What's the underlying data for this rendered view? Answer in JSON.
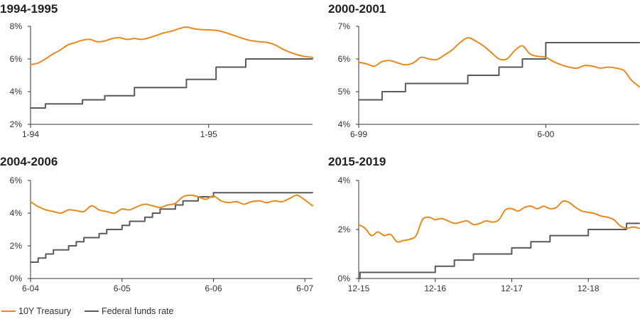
{
  "legend": [
    {
      "label": "10Y Treasury",
      "color": "#e8891e"
    },
    {
      "label": "Federal funds rate",
      "color": "#5a5a5a"
    }
  ],
  "chart_data": [
    {
      "type": "line",
      "title": "1994-1995",
      "ylim": [
        2,
        8
      ],
      "yticks": [
        2,
        4,
        6,
        8
      ],
      "ytick_labels": [
        "2%",
        "4%",
        "6%",
        "8%"
      ],
      "xlim": [
        0,
        19
      ],
      "xticks": [
        0,
        12
      ],
      "xtick_labels": [
        "1-94",
        "1-95"
      ],
      "grid": false,
      "series": [
        {
          "name": "10Y Treasury",
          "color": "#e8891e",
          "x": [
            0,
            0.5,
            1,
            1.5,
            2,
            2.5,
            3,
            3.5,
            4,
            4.5,
            5,
            5.5,
            6,
            6.5,
            7,
            7.5,
            8,
            8.5,
            9,
            9.5,
            10,
            10.5,
            11,
            11.5,
            12,
            12.5,
            13,
            13.5,
            14,
            14.5,
            15,
            15.5,
            16,
            16.5,
            17,
            17.5,
            18,
            18.5,
            19
          ],
          "y": [
            5.65,
            5.75,
            6.0,
            6.3,
            6.55,
            6.85,
            7.0,
            7.15,
            7.2,
            7.05,
            7.1,
            7.25,
            7.3,
            7.2,
            7.25,
            7.2,
            7.3,
            7.45,
            7.6,
            7.7,
            7.85,
            7.95,
            7.85,
            7.8,
            7.78,
            7.75,
            7.65,
            7.5,
            7.35,
            7.2,
            7.1,
            7.05,
            7.0,
            6.85,
            6.6,
            6.4,
            6.25,
            6.15,
            6.1
          ]
        },
        {
          "name": "Federal funds rate",
          "color": "#5a5a5a",
          "step": true,
          "x": [
            0,
            1,
            2,
            3.5,
            5,
            7,
            8.5,
            10.5,
            12.5,
            14.5,
            19
          ],
          "y": [
            3.0,
            3.25,
            3.25,
            3.5,
            3.75,
            4.25,
            4.25,
            4.75,
            5.5,
            6.0,
            6.0
          ]
        }
      ]
    },
    {
      "type": "line",
      "title": "2000-2001",
      "ylim": [
        4,
        7
      ],
      "yticks": [
        4,
        5,
        6,
        7
      ],
      "ytick_labels": [
        "4%",
        "5%",
        "6%",
        "7%"
      ],
      "xlim": [
        0,
        18
      ],
      "xticks": [
        0,
        12
      ],
      "xtick_labels": [
        "6-99",
        "6-00"
      ],
      "grid": false,
      "series": [
        {
          "name": "10Y Treasury",
          "color": "#e8891e",
          "x": [
            0,
            0.5,
            1,
            1.5,
            2,
            2.5,
            3,
            3.5,
            4,
            4.5,
            5,
            5.5,
            6,
            6.5,
            7,
            7.5,
            8,
            8.5,
            9,
            9.5,
            10,
            10.5,
            11,
            11.5,
            12,
            12.5,
            13,
            13.5,
            14,
            14.5,
            15,
            15.5,
            16,
            16.5,
            17,
            17.5,
            18
          ],
          "y": [
            5.9,
            5.85,
            5.78,
            5.92,
            5.95,
            5.88,
            5.82,
            5.88,
            6.05,
            6.0,
            5.98,
            6.12,
            6.28,
            6.5,
            6.65,
            6.55,
            6.4,
            6.2,
            6.0,
            6.0,
            6.25,
            6.4,
            6.15,
            6.08,
            6.05,
            5.92,
            5.82,
            5.75,
            5.72,
            5.8,
            5.78,
            5.72,
            5.75,
            5.72,
            5.65,
            5.35,
            5.15
          ]
        },
        {
          "name": "Federal funds rate",
          "color": "#5a5a5a",
          "step": true,
          "x": [
            0,
            1.5,
            3,
            5,
            7,
            9,
            10.5,
            12,
            18
          ],
          "y": [
            4.75,
            5.0,
            5.25,
            5.25,
            5.5,
            5.75,
            6.0,
            6.5,
            6.5
          ]
        }
      ]
    },
    {
      "type": "line",
      "title": "2004-2006",
      "ylim": [
        0,
        6
      ],
      "yticks": [
        0,
        2,
        4,
        6
      ],
      "ytick_labels": [
        "0%",
        "2%",
        "4%",
        "6%"
      ],
      "xlim": [
        0,
        37
      ],
      "xticks": [
        0,
        12,
        24,
        36
      ],
      "xtick_labels": [
        "6-04",
        "6-05",
        "6-06",
        "6-07"
      ],
      "grid": false,
      "series": [
        {
          "name": "10Y Treasury",
          "color": "#e8891e",
          "x": [
            0,
            1,
            2,
            3,
            4,
            5,
            6,
            7,
            8,
            9,
            10,
            11,
            12,
            13,
            14,
            15,
            16,
            17,
            18,
            19,
            20,
            21,
            22,
            23,
            24,
            25,
            26,
            27,
            28,
            29,
            30,
            31,
            32,
            33,
            34,
            35,
            36,
            37
          ],
          "y": [
            4.7,
            4.4,
            4.2,
            4.1,
            4.0,
            4.2,
            4.15,
            4.1,
            4.45,
            4.2,
            4.1,
            4.0,
            4.25,
            4.2,
            4.4,
            4.55,
            4.45,
            4.35,
            4.5,
            4.6,
            5.0,
            5.1,
            5.0,
            4.85,
            5.05,
            4.75,
            4.65,
            4.7,
            4.55,
            4.7,
            4.75,
            4.65,
            4.75,
            4.7,
            4.9,
            5.1,
            4.8,
            4.45
          ]
        },
        {
          "name": "Federal funds rate",
          "color": "#5a5a5a",
          "step": true,
          "x": [
            0,
            1,
            2,
            3,
            4,
            5,
            6,
            7,
            8,
            9,
            10,
            11,
            12,
            13,
            14,
            15,
            16,
            17,
            18,
            19,
            20,
            21,
            22,
            23,
            24,
            37
          ],
          "y": [
            1.0,
            1.25,
            1.5,
            1.75,
            1.75,
            2.0,
            2.25,
            2.5,
            2.5,
            2.75,
            3.0,
            3.0,
            3.25,
            3.5,
            3.5,
            3.75,
            4.0,
            4.25,
            4.25,
            4.5,
            4.75,
            4.75,
            5.0,
            5.0,
            5.25,
            5.25
          ]
        }
      ]
    },
    {
      "type": "line",
      "title": "2015-2019",
      "ylim": [
        0,
        4
      ],
      "yticks": [
        0,
        2,
        4
      ],
      "ytick_labels": [
        "0%",
        "2%",
        "4%"
      ],
      "xlim": [
        0,
        44
      ],
      "xticks": [
        0,
        12,
        24,
        36
      ],
      "xtick_labels": [
        "12-15",
        "12-16",
        "12-17",
        "12-18"
      ],
      "grid": false,
      "series": [
        {
          "name": "10Y Treasury",
          "color": "#e8891e",
          "x": [
            0,
            1,
            2,
            3,
            4,
            5,
            6,
            7,
            8,
            9,
            10,
            11,
            12,
            13,
            14,
            15,
            16,
            17,
            18,
            19,
            20,
            21,
            22,
            23,
            24,
            25,
            26,
            27,
            28,
            29,
            30,
            31,
            32,
            33,
            34,
            35,
            36,
            37,
            38,
            39,
            40,
            41,
            42,
            43,
            44
          ],
          "y": [
            2.2,
            2.05,
            1.75,
            1.9,
            1.75,
            1.8,
            1.5,
            1.55,
            1.6,
            1.75,
            2.4,
            2.5,
            2.4,
            2.45,
            2.35,
            2.25,
            2.3,
            2.35,
            2.2,
            2.25,
            2.35,
            2.3,
            2.4,
            2.8,
            2.85,
            2.75,
            2.9,
            2.95,
            2.85,
            2.95,
            2.85,
            2.9,
            3.15,
            3.1,
            2.9,
            2.75,
            2.7,
            2.65,
            2.55,
            2.5,
            2.4,
            2.15,
            2.05,
            2.1,
            2.05
          ]
        },
        {
          "name": "Federal funds rate",
          "color": "#5a5a5a",
          "step": true,
          "x": [
            0,
            0.2,
            12,
            15,
            18,
            24,
            27,
            30,
            36,
            42,
            44
          ],
          "y": [
            0.0,
            0.25,
            0.5,
            0.75,
            1.0,
            1.25,
            1.5,
            1.75,
            2.0,
            2.25,
            2.25
          ]
        }
      ]
    }
  ]
}
